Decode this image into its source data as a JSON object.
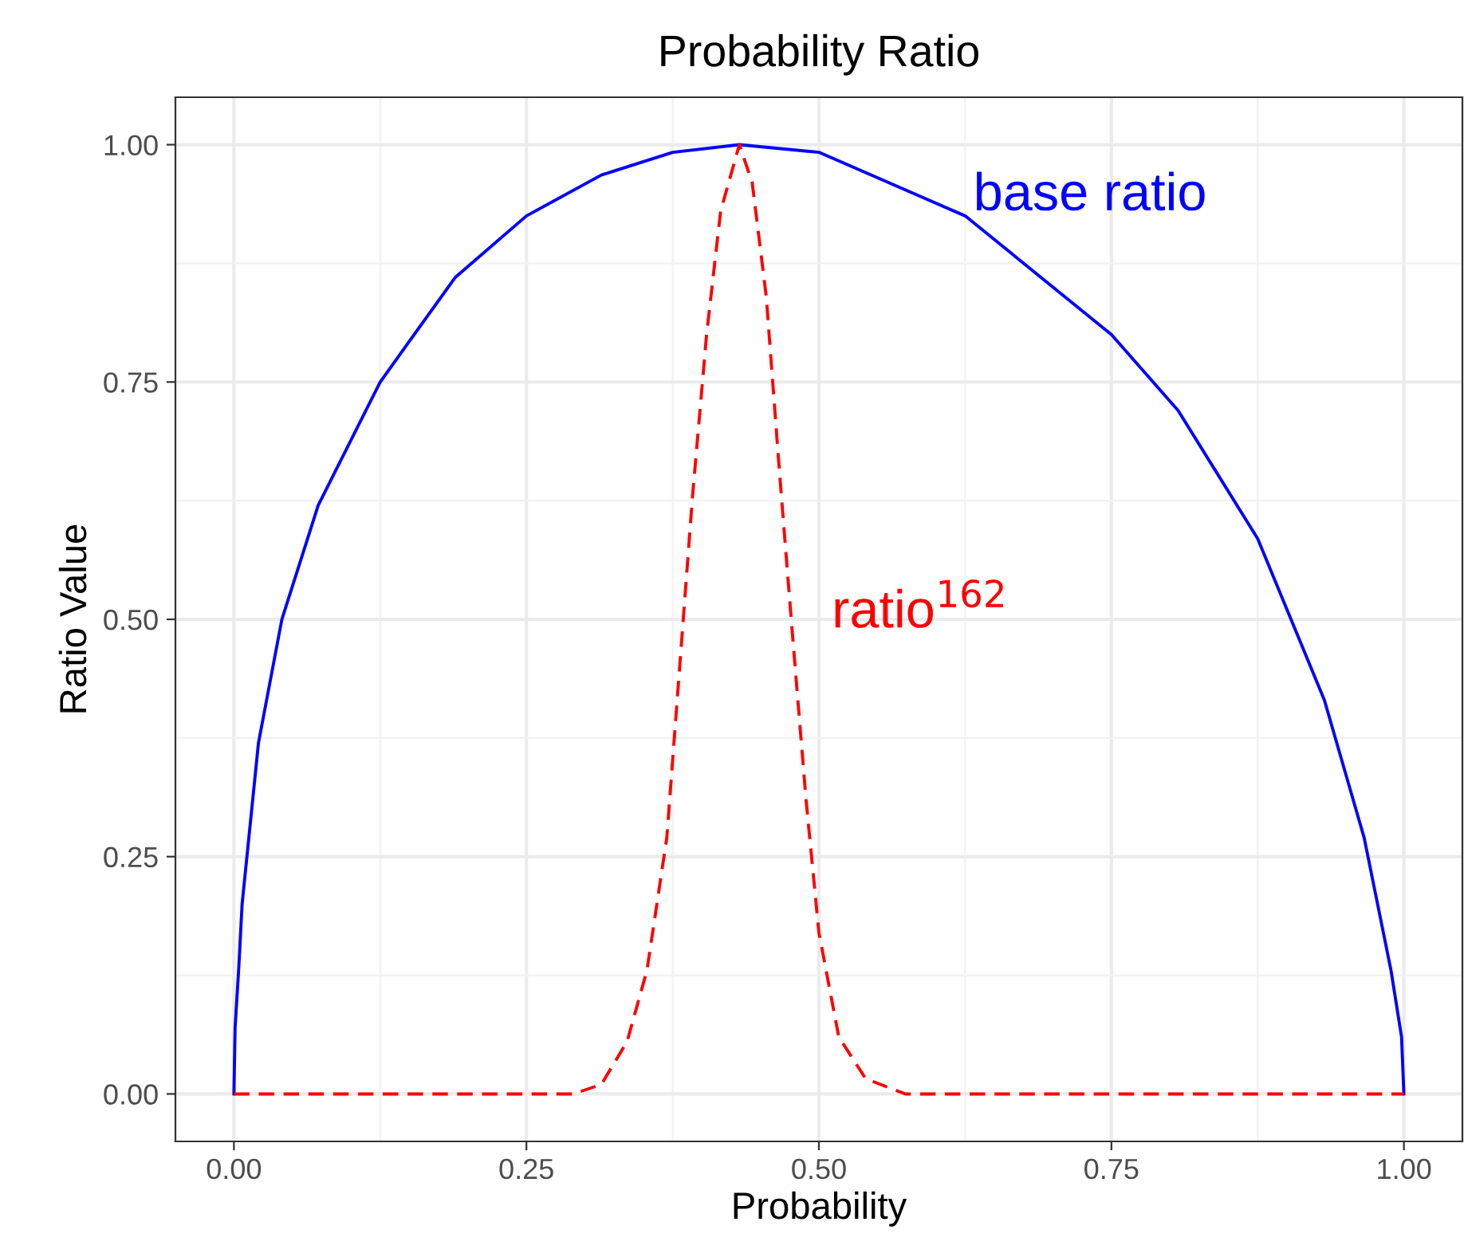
{
  "chart_data": {
    "type": "line",
    "title": "Probability Ratio",
    "xlabel": "Probability",
    "ylabel": "Ratio Value",
    "xlim": [
      -0.05,
      1.05
    ],
    "ylim": [
      -0.05,
      1.05
    ],
    "xticks": [
      {
        "value": 0,
        "label": "0.00"
      },
      {
        "value": 0.25,
        "label": "0.25"
      },
      {
        "value": 0.5,
        "label": "0.50"
      },
      {
        "value": 0.75,
        "label": "0.75"
      },
      {
        "value": 1,
        "label": "1.00"
      }
    ],
    "yticks": [
      {
        "value": 0,
        "label": "0.00"
      },
      {
        "value": 0.25,
        "label": "0.25"
      },
      {
        "value": 0.5,
        "label": "0.50"
      },
      {
        "value": 0.75,
        "label": "0.75"
      },
      {
        "value": 1,
        "label": "1.00"
      }
    ],
    "grid": true,
    "legend": false,
    "series": [
      {
        "name": "base ratio",
        "color": "#0000ff",
        "line_style": "solid",
        "x": [
          0,
          0.001,
          0.004,
          0.007,
          0.021,
          0.041,
          0.072,
          0.125,
          0.189,
          0.25,
          0.314,
          0.375,
          0.432,
          0.5,
          0.625,
          0.75,
          0.807,
          0.875,
          0.932,
          0.966,
          0.989,
          0.998,
          1
        ],
        "values": [
          0,
          0.07,
          0.13,
          0.2,
          0.37,
          0.5,
          0.62,
          0.75,
          0.86,
          0.925,
          0.968,
          0.992,
          1,
          0.992,
          0.925,
          0.8,
          0.72,
          0.585,
          0.415,
          0.27,
          0.13,
          0.06,
          0
        ]
      },
      {
        "name": "ratio$^{162}$",
        "color": "#ff0000",
        "line_style": "dashed",
        "x": [
          0,
          0.29,
          0.314,
          0.336,
          0.353,
          0.37,
          0.381,
          0.392,
          0.404,
          0.416,
          0.432,
          0.443,
          0.455,
          0.466,
          0.477,
          0.489,
          0.5,
          0.517,
          0.54,
          0.574,
          1
        ],
        "values": [
          0,
          0,
          0.01,
          0.055,
          0.13,
          0.27,
          0.45,
          0.63,
          0.8,
          0.93,
          1,
          0.96,
          0.84,
          0.66,
          0.49,
          0.31,
          0.17,
          0.06,
          0.016,
          0,
          0
        ]
      }
    ]
  }
}
